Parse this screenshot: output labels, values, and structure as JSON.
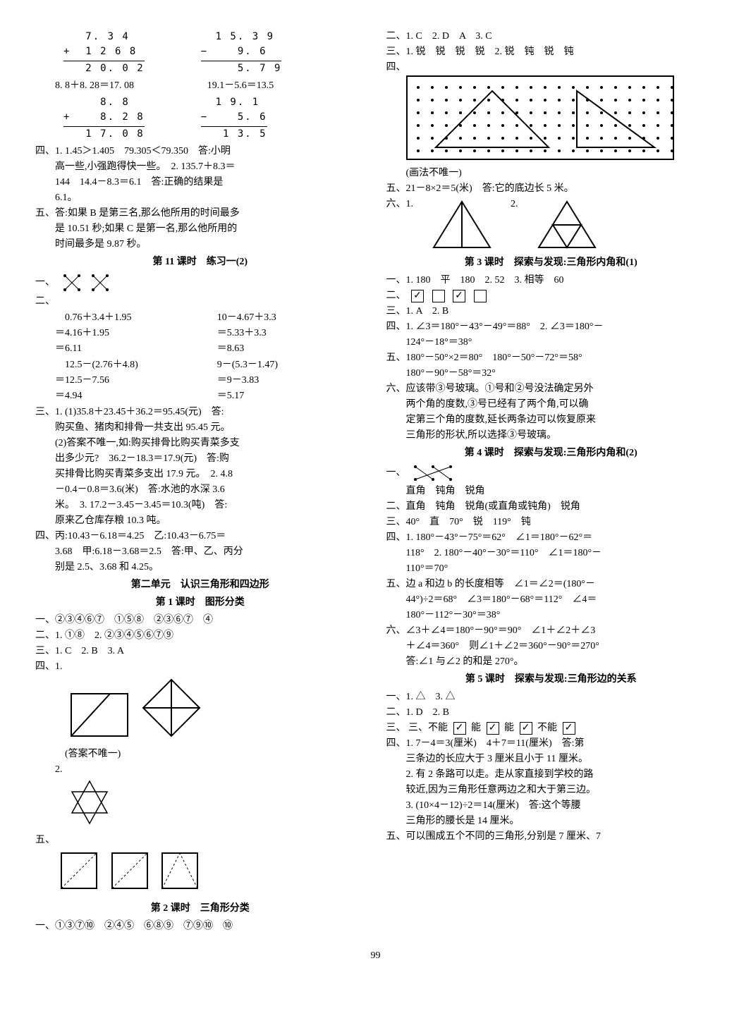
{
  "page_number": "99",
  "left": {
    "calc1": {
      "r1": "   7. 3 4",
      "r2": "+  1 2 6 8",
      "r3": "   2 0. 0 2"
    },
    "eq1": "8. 8＋8. 28＝17. 08",
    "calc2": {
      "r1": "     8. 8",
      "r2": "+    8. 2 8",
      "r3": "   1 7. 0 8"
    },
    "calc3": {
      "r1": "  1 5. 3 9",
      "r2": "−    9. 6",
      "r3": "     5. 7 9"
    },
    "eq2": "19.1－5.6＝13.5",
    "calc4": {
      "r1": "  1 9. 1",
      "r2": "−    5. 6",
      "r3": "   1 3. 5"
    },
    "s4_1": "四、1. 1.45＞1.405　79.305＜79.350　答:小明",
    "s4_1b": "高一些,小强跑得快一些。　2. 135.7＋8.3＝",
    "s4_1c": "144　14.4－8.3＝6.1　答:正确的结果是",
    "s4_1d": "6.1。",
    "s5_1": "五、答:如果 B 是第三名,那么他所用的时间最多",
    "s5_1b": "是 10.51 秒;如果 C 是第一名,那么他所用的",
    "s5_1c": "时间最多是 9.87 秒。",
    "title_11": "第 11 课时　练习一(2)",
    "s2_eq1a": "　0.76＋3.4＋1.95",
    "s2_eq1b": "＝4.16＋1.95",
    "s2_eq1c": "＝6.11",
    "s2_eq2a": "10－4.67＋3.3",
    "s2_eq2b": "＝5.33＋3.3",
    "s2_eq2c": "＝8.63",
    "s2_eq3a": "　12.5－(2.76＋4.8)",
    "s2_eq3b": "＝12.5－7.56",
    "s2_eq3c": "＝4.94",
    "s2_eq4a": "9－(5.3－1.47)",
    "s2_eq4b": "＝9－3.83",
    "s2_eq4c": "＝5.17",
    "s3_1": "三、1. (1)35.8＋23.45＋36.2＝95.45(元)　答:",
    "s3_1b": "购买鱼、猪肉和排骨一共支出 95.45 元。",
    "s3_1c": "(2)答案不唯一,如:购买排骨比购买青菜多支",
    "s3_1d": "出多少元?　36.2－18.3＝17.9(元)　答:购",
    "s3_1e": "买排骨比购买青菜多支出 17.9 元。　2. 4.8",
    "s3_1f": "－0.4－0.8＝3.6(米)　答:水池的水深 3.6",
    "s3_1g": "米。　3. 17.2－3.45－3.45＝10.3(吨)　答:",
    "s3_1h": "原来乙仓库存粮 10.3 吨。",
    "s4b_1": "四、丙:10.43－6.18＝4.25　乙:10.43－6.75＝",
    "s4b_1b": "3.68　甲:6.18－3.68＝2.5　答:甲、乙、丙分",
    "s4b_1c": "别是 2.5、3.68 和 4.25。",
    "title_u2": "第二单元　认识三角形和四边形",
    "title_k1": "第 1 课时　图形分类",
    "u2_s1": "一、②③④⑥⑦　①⑤⑧　②③⑥⑦　④",
    "u2_s2": "二、1. ①⑧　2. ②③④⑤⑥⑦⑨",
    "u2_s3": "三、1. C　2. B　3. A",
    "u2_s4": "四、1.",
    "u2_note": "(答案不唯一)",
    "u2_s4_2": "2.",
    "u2_s5": "五、",
    "title_k2": "第 2 课时　三角形分类",
    "k2_s1": "一、①③⑦⑩　②④⑤　⑥⑧⑨　⑦⑨⑩　⑩"
  },
  "right": {
    "s2_1": "二、1. C　2. D　A　3. C",
    "s3_1": "三、1. 锐　锐　锐　锐　2. 锐　钝　锐　钝",
    "s4": "四、",
    "note1": "(画法不唯一)",
    "s5": "五、21－8×2＝5(米)　答:它的底边长 5 米。",
    "s6": "六、1.",
    "s6_2": "2.",
    "title_k3": "第 3 课时　探索与发现:三角形内角和(1)",
    "k3_s1": "一、1. 180　平　180　2. 52　3. 相等　60",
    "k3_s2": "二、",
    "k3_s3": "三、1. A　2. B",
    "k3_s4": "四、1. ∠3＝180°－43°－49°＝88°　2. ∠3＝180°－",
    "k3_s4b": "124°－18°＝38°",
    "k3_s5": "五、180°－50°×2＝80°　180°－50°－72°＝58°",
    "k3_s5b": "180°－90°－58°＝32°",
    "k3_s6": "六、应该带③号玻璃。①号和②号没法确定另外",
    "k3_s6b": "两个角的度数,③号已经有了两个角,可以确",
    "k3_s6c": "定第三个角的度数,延长两条边可以恢复原来",
    "k3_s6d": "三角形的形状,所以选择③号玻璃。",
    "title_k4": "第 4 课时　探索与发现:三角形内角和(2)",
    "k4_s1": "一、",
    "k4_s1b": "直角　钝角　锐角",
    "k4_s2": "二、直角　钝角　锐角(或直角或钝角)　锐角",
    "k4_s3": "三、40°　直　70°　锐　119°　钝",
    "k4_s4": "四、1. 180°－43°－75°＝62°　∠1＝180°－62°＝",
    "k4_s4b": "118°　2. 180°－40°－30°＝110°　∠1＝180°－",
    "k4_s4c": "110°＝70°",
    "k4_s5": "五、边 a 和边 b 的长度相等　∠1＝∠2＝(180°－",
    "k4_s5b": "44°)÷2＝68°　∠3＝180°－68°＝112°　∠4＝",
    "k4_s5c": "180°－112°－30°＝38°",
    "k4_s6": "六、∠3＋∠4＝180°－90°＝90°　∠1＋∠2＋∠3",
    "k4_s6b": "＋∠4＝360°　则∠1＋∠2＝360°－90°＝270°",
    "k4_s6c": "答:∠1 与∠2 的和是 270°。",
    "title_k5": "第 5 课时　探索与发现:三角形边的关系",
    "k5_s1": "一、1. △　3. △",
    "k5_s2": "二、1. D　2. B",
    "k5_s3": "三、不能",
    "k5_s3_opts": [
      "能",
      "能",
      "不能"
    ],
    "k5_s4": "四、1. 7－4＝3(厘米)　4＋7＝11(厘米)　答:第",
    "k5_s4b": "三条边的长应大于 3 厘米且小于 11 厘米。",
    "k5_s4c": "2. 有 2 条路可以走。走从家直接到学校的路",
    "k5_s4d": "较近,因为三角形任意两边之和大于第三边。",
    "k5_s4e": "3. (10×4－12)÷2＝14(厘米)　答:这个等腰",
    "k5_s4f": "三角形的腰长是 14 厘米。",
    "k5_s5": "五、可以围成五个不同的三角形,分别是 7 厘米、7"
  }
}
